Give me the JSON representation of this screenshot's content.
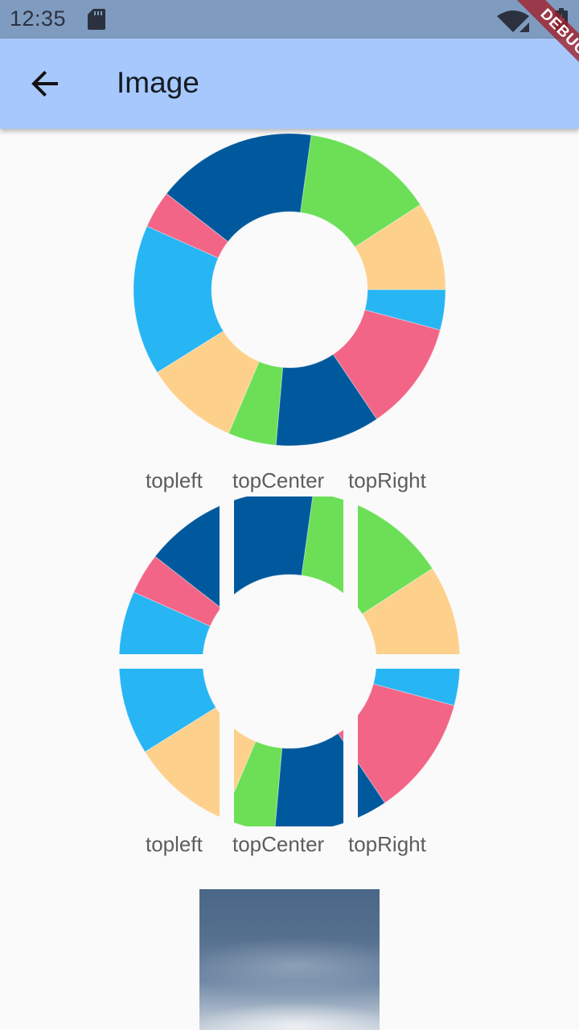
{
  "status_bar": {
    "time": "12:35",
    "icons": [
      "sd-card-icon",
      "wifi-off-icon",
      "battery-charging-icon"
    ]
  },
  "app_bar": {
    "title": "Image",
    "back_icon": "arrow-left-icon",
    "debug_banner": "DEBUG"
  },
  "colors": {
    "status_bar": "#7f9cc0",
    "app_bar": "#a6c8fc",
    "background": "#fafafa",
    "donut_green": "#6cdf57",
    "donut_peach": "#fdd08c",
    "donut_blue": "#27b5f4",
    "donut_pink": "#f26587",
    "donut_navy": "#00599d"
  },
  "alignment_captions_top": [
    "topleft",
    "topCenter",
    "topRight"
  ],
  "alignment_captions_bottom": [
    "topleft",
    "topCenter",
    "topRight"
  ]
}
